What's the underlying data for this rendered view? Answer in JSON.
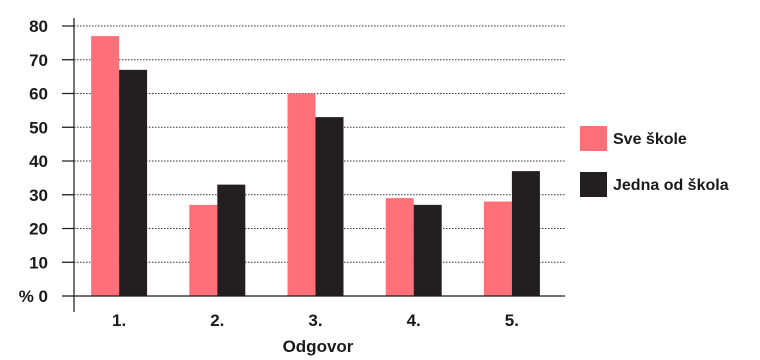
{
  "chart_data": {
    "type": "bar",
    "categories": [
      "1.",
      "2.",
      "3.",
      "4.",
      "5."
    ],
    "series": [
      {
        "name": "Sve škole",
        "color": "#ff7079",
        "values": [
          77,
          27,
          60,
          29,
          28
        ]
      },
      {
        "name": "Jedna od škola",
        "color": "#231f20",
        "values": [
          67,
          33,
          53,
          27,
          37
        ]
      }
    ],
    "y_tick_labels": [
      "% 0",
      "10",
      "20",
      "30",
      "40",
      "50",
      "60",
      "70",
      "80"
    ],
    "ylim": [
      0,
      80
    ],
    "xlabel": "Odgovor",
    "ylabel": "",
    "grid": true,
    "legend_position": "right"
  }
}
